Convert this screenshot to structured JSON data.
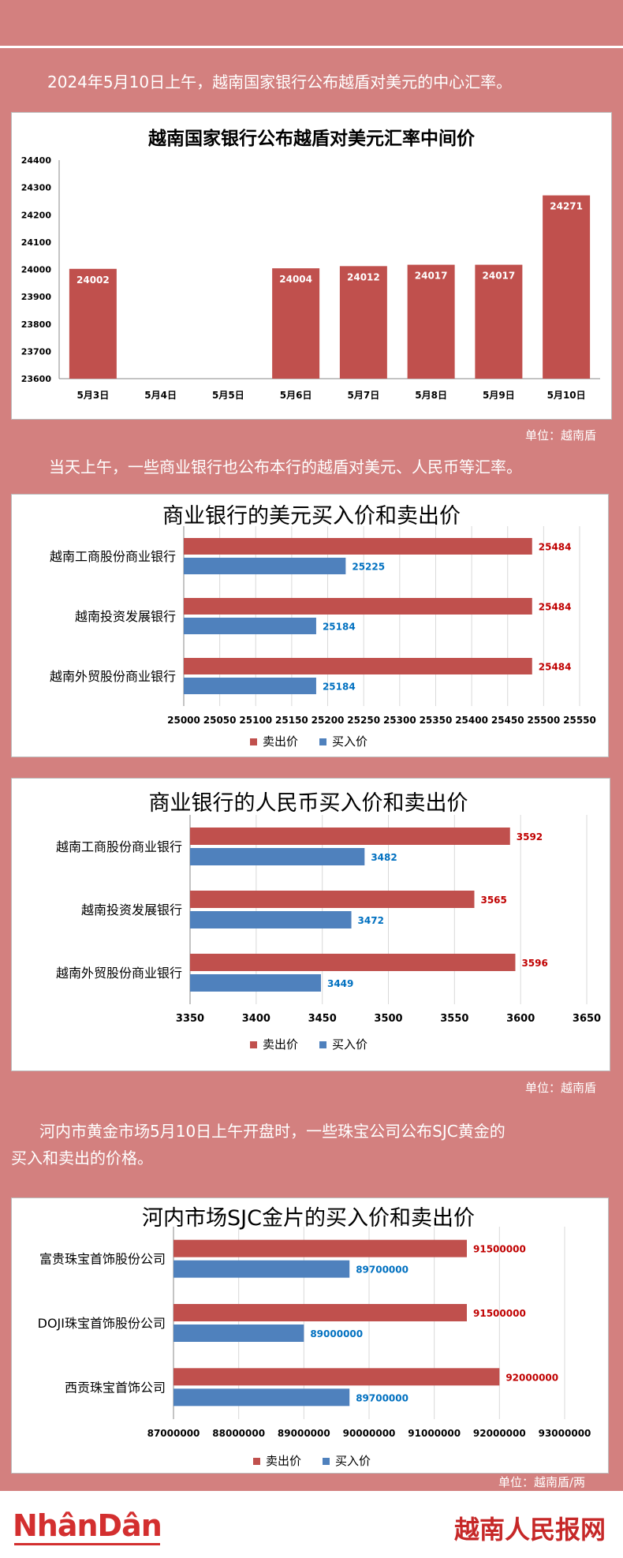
{
  "intro_text": "2024年5月10日上午，越南国家银行公布越盾对美元的中心汇率。",
  "text2": "当天上午，一些商业银行也公布本行的越盾对美元、人民币等汇率。",
  "text3_line1": "河内市黄金市场5月10日上午开盘时，一些珠宝公司公布SJC黄金的",
  "text3_line2": "买入和卖出的价格。",
  "unit1": "单位：越南盾",
  "unit2": "单位：越南盾",
  "unit3": "单位：越南盾/两",
  "footer": {
    "logo_left": "NhânDân",
    "logo_right": "越南人民报网"
  },
  "colors": {
    "sell": "#c0504d",
    "buy": "#4f81bd",
    "sell_label": "#c00000",
    "buy_label": "#0070c0"
  },
  "chart_data": [
    {
      "type": "bar",
      "title": "越南国家银行公布越盾对美元汇率中间价",
      "categories": [
        "5月3日",
        "5月4日",
        "5月5日",
        "5月6日",
        "5月7日",
        "5月8日",
        "5月9日",
        "5月10日"
      ],
      "values": [
        24002,
        null,
        null,
        24004,
        24012,
        24017,
        24017,
        24271
      ],
      "data_labels": [
        "24002",
        "",
        "",
        "24004",
        "24012",
        "24017",
        "24017",
        "24271"
      ],
      "ylim": [
        23600,
        24400
      ],
      "yticks": [
        "23600",
        "23700",
        "23800",
        "23900",
        "24000",
        "24100",
        "24200",
        "24300",
        "24400"
      ],
      "grid": false
    },
    {
      "type": "bar",
      "orientation": "horizontal",
      "title": "商业银行的美元买入价和卖出价",
      "categories": [
        "越南工商股份商业银行",
        "越南投资发展银行",
        "越南外贸股份商业银行"
      ],
      "series": [
        {
          "name": "卖出价",
          "values": [
            25484,
            25484,
            25484
          ],
          "labels": [
            "25484",
            "25484",
            "25484"
          ]
        },
        {
          "name": "买入价",
          "values": [
            25225,
            25184,
            25184
          ],
          "labels": [
            "25225",
            "25184",
            "25184"
          ]
        }
      ],
      "xlim": [
        25000,
        25550
      ],
      "xticks": [
        "25000",
        "25050",
        "25100",
        "25150",
        "25200",
        "25250",
        "25300",
        "25350",
        "25400",
        "25450",
        "25500",
        "25550"
      ],
      "legend_position": "bottom",
      "grid": true
    },
    {
      "type": "bar",
      "orientation": "horizontal",
      "title": "商业银行的人民币买入价和卖出价",
      "categories": [
        "越南工商股份商业银行",
        "越南投资发展银行",
        "越南外贸股份商业银行"
      ],
      "series": [
        {
          "name": "卖出价",
          "values": [
            3592,
            3565,
            3596
          ],
          "labels": [
            "3592",
            "3565",
            "3596"
          ]
        },
        {
          "name": "买入价",
          "values": [
            3482,
            3472,
            3449
          ],
          "labels": [
            "3482",
            "3472",
            "3449"
          ]
        }
      ],
      "xlim": [
        3350,
        3650
      ],
      "xticks": [
        "3350",
        "3400",
        "3450",
        "3500",
        "3550",
        "3600",
        "3650"
      ],
      "legend_position": "bottom",
      "grid": true
    },
    {
      "type": "bar",
      "orientation": "horizontal",
      "title": "河内市场SJC金片的买入价和卖出价",
      "categories": [
        "富贵珠宝首饰股份公司",
        "DOJI珠宝首饰股份公司",
        "西贡珠宝首饰公司"
      ],
      "series": [
        {
          "name": "卖出价",
          "values": [
            91500000,
            91500000,
            92000000
          ],
          "labels": [
            "91500000",
            "91500000",
            "92000000"
          ]
        },
        {
          "name": "买入价",
          "values": [
            89700000,
            89000000,
            89700000
          ],
          "labels": [
            "89700000",
            "89000000",
            "89700000"
          ]
        }
      ],
      "xlim": [
        87000000,
        93000000
      ],
      "xticks": [
        "87000000",
        "88000000",
        "89000000",
        "90000000",
        "91000000",
        "92000000",
        "93000000"
      ],
      "legend_position": "bottom",
      "grid": true
    }
  ]
}
